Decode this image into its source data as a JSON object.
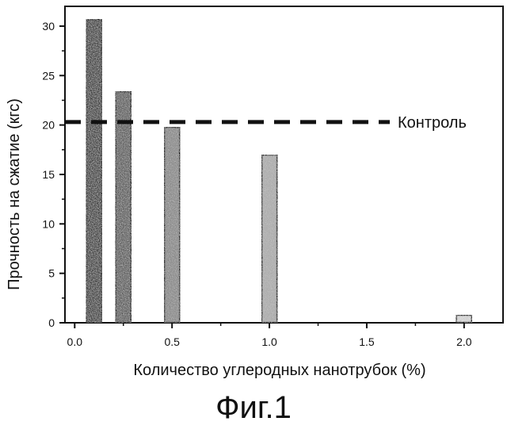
{
  "chart_data": {
    "type": "bar",
    "x": [
      0.1,
      0.25,
      0.5,
      1.0,
      2.0
    ],
    "values": [
      30.7,
      23.4,
      19.8,
      17.0,
      0.8
    ],
    "xlabel": "Количество углеродных нанотрубок (%)",
    "ylabel": "Прочность на сжатие (кгс)",
    "xlim": [
      -0.05,
      2.2
    ],
    "ylim": [
      0,
      32
    ],
    "xticks": [
      "0.0",
      "0.5",
      "1.0",
      "1.5",
      "2.0"
    ],
    "yticks": [
      "0",
      "5",
      "10",
      "15",
      "20",
      "25",
      "30"
    ],
    "reference_line": {
      "label": "Контроль",
      "value": 20.3
    },
    "bar_shades": [
      "#3a3a3a",
      "#5c5c5c",
      "#8a8a8a",
      "#b0b0b0",
      "#e0e0e0"
    ],
    "grid": false
  },
  "figure_caption": "Фиг.1"
}
